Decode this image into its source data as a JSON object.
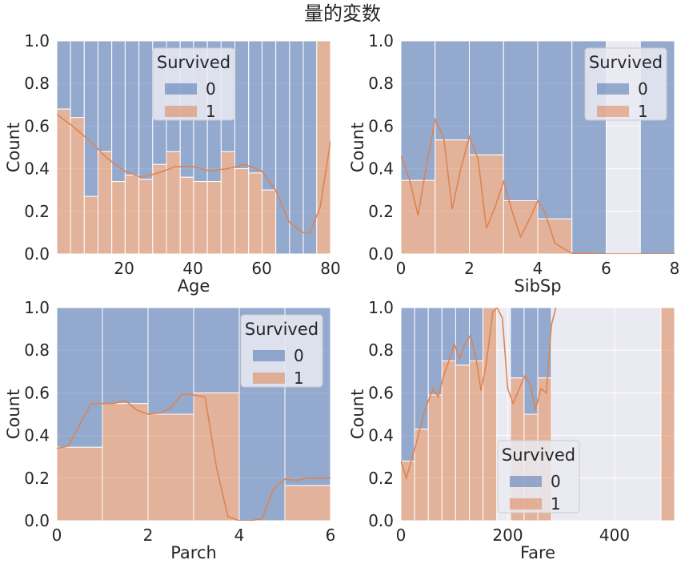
{
  "figure": {
    "title": "量的変数",
    "colors": {
      "survived_0": "#4c72b0",
      "survived_1": "#dd8452",
      "kde": "#dd8452",
      "axes_bg": "#eaeaf2",
      "grid": "#ffffff"
    }
  },
  "chart_data": [
    {
      "type": "bar",
      "stacked": "fill",
      "xlabel": "Age",
      "ylabel": "Count",
      "xlim": [
        0.42,
        80
      ],
      "ylim": [
        0,
        1
      ],
      "xticks": [
        "20",
        "40",
        "60",
        "80"
      ],
      "yticks": [
        "0.0",
        "0.2",
        "0.4",
        "0.6",
        "0.8",
        "1.0"
      ],
      "legend": {
        "title": "Survived",
        "labels": [
          "0",
          "1"
        ],
        "position": "upper-center"
      },
      "bin_edges": [
        0.42,
        4.4,
        8.4,
        12.4,
        16.4,
        20.3,
        24.3,
        28.3,
        32.3,
        36.3,
        40.2,
        44.2,
        48.2,
        52.2,
        56.2,
        60.1,
        64.1,
        68.1,
        72.1,
        76.0,
        80.0
      ],
      "series": [
        {
          "name": "0",
          "values": [
            0.32,
            0.36,
            0.73,
            0.52,
            0.66,
            0.63,
            0.65,
            0.58,
            0.52,
            0.64,
            0.66,
            0.66,
            0.52,
            0.6,
            0.62,
            0.7,
            1.0,
            1.0,
            1.0,
            0.0
          ]
        },
        {
          "name": "1",
          "values": [
            0.68,
            0.64,
            0.27,
            0.48,
            0.34,
            0.37,
            0.35,
            0.42,
            0.48,
            0.36,
            0.34,
            0.34,
            0.48,
            0.4,
            0.38,
            0.3,
            0.0,
            0.0,
            0.0,
            1.0
          ]
        }
      ],
      "kde": {
        "x": [
          0.42,
          5,
          10,
          15,
          20,
          25,
          30,
          35,
          40,
          45,
          50,
          55,
          60,
          64,
          68,
          72,
          74,
          77,
          80
        ],
        "y": [
          0.655,
          0.6,
          0.53,
          0.45,
          0.39,
          0.36,
          0.38,
          0.41,
          0.41,
          0.39,
          0.4,
          0.42,
          0.39,
          0.3,
          0.15,
          0.1,
          0.1,
          0.22,
          0.53
        ]
      }
    },
    {
      "type": "bar",
      "stacked": "fill",
      "xlabel": "SibSp",
      "ylabel": "Count",
      "xlim": [
        0,
        8
      ],
      "ylim": [
        0,
        1
      ],
      "xticks": [
        "0",
        "2",
        "4",
        "6",
        "8"
      ],
      "yticks": [
        "0.0",
        "0.2",
        "0.4",
        "0.6",
        "0.8",
        "1.0"
      ],
      "legend": {
        "title": "Survived",
        "labels": [
          "0",
          "1"
        ],
        "position": "upper-right"
      },
      "bin_edges": [
        0,
        1,
        2,
        3,
        4,
        5,
        6,
        7,
        8
      ],
      "series": [
        {
          "name": "0",
          "values": [
            0.655,
            0.465,
            0.535,
            0.75,
            0.835,
            1.0,
            null,
            1.0
          ]
        },
        {
          "name": "1",
          "values": [
            0.345,
            0.535,
            0.465,
            0.25,
            0.165,
            0.0,
            null,
            0.0
          ]
        }
      ],
      "kde": {
        "x": [
          0,
          0.25,
          0.5,
          0.75,
          1.0,
          1.25,
          1.5,
          1.75,
          2.0,
          2.25,
          2.5,
          2.75,
          3.0,
          3.25,
          3.5,
          3.75,
          4.0,
          4.2,
          4.5,
          5,
          6,
          7,
          8
        ],
        "y": [
          0.46,
          0.35,
          0.18,
          0.42,
          0.63,
          0.55,
          0.21,
          0.4,
          0.55,
          0.45,
          0.12,
          0.22,
          0.34,
          0.2,
          0.08,
          0.16,
          0.25,
          0.2,
          0.05,
          0.003,
          0.0,
          0.0,
          0.0
        ]
      }
    },
    {
      "type": "bar",
      "stacked": "fill",
      "xlabel": "Parch",
      "ylabel": "Count",
      "xlim": [
        0,
        6
      ],
      "ylim": [
        0,
        1
      ],
      "xticks": [
        "0",
        "2",
        "4",
        "6"
      ],
      "yticks": [
        "0.0",
        "0.2",
        "0.4",
        "0.6",
        "0.8",
        "1.0"
      ],
      "legend": {
        "title": "Survived",
        "labels": [
          "0",
          "1"
        ],
        "position": "upper-right"
      },
      "bin_edges": [
        0,
        1,
        2,
        3,
        4,
        5,
        6
      ],
      "series": [
        {
          "name": "0",
          "values": [
            0.655,
            0.45,
            0.5,
            0.4,
            1.0,
            0.835
          ]
        },
        {
          "name": "1",
          "values": [
            0.345,
            0.55,
            0.5,
            0.6,
            0.0,
            0.165
          ]
        }
      ],
      "kde": {
        "x": [
          0,
          0.25,
          0.5,
          0.75,
          1.0,
          1.25,
          1.5,
          1.75,
          2.0,
          2.25,
          2.5,
          2.75,
          3.0,
          3.25,
          3.5,
          3.75,
          4.0,
          4.25,
          4.5,
          4.75,
          5.0,
          5.25,
          5.5,
          6.0
        ],
        "y": [
          0.34,
          0.35,
          0.45,
          0.55,
          0.55,
          0.55,
          0.565,
          0.52,
          0.5,
          0.505,
          0.53,
          0.595,
          0.59,
          0.58,
          0.25,
          0.02,
          0.0,
          0.0,
          0.01,
          0.15,
          0.195,
          0.19,
          0.2,
          0.2
        ]
      }
    },
    {
      "type": "bar",
      "stacked": "fill",
      "xlabel": "Fare",
      "ylabel": "Count",
      "xlim": [
        0,
        512.33
      ],
      "ylim": [
        0,
        1
      ],
      "xticks": [
        "0",
        "200",
        "400"
      ],
      "yticks": [
        "0.0",
        "0.2",
        "0.4",
        "0.6",
        "0.8",
        "1.0"
      ],
      "legend": {
        "title": "Survived",
        "labels": [
          "0",
          "1"
        ],
        "position": "lower-center"
      },
      "bin_edges": [
        0,
        25.6,
        51.2,
        76.9,
        102.5,
        128.1,
        153.7,
        179.3,
        205.0,
        230.6,
        256.2,
        281.8,
        307.4,
        333.0,
        358.7,
        384.3,
        409.9,
        435.5,
        461.1,
        486.8,
        512.33
      ],
      "series": [
        {
          "name": "0",
          "values": [
            0.72,
            0.57,
            0.41,
            0.25,
            0.27,
            0.25,
            0.0,
            null,
            0.33,
            0.5,
            0.33,
            null,
            null,
            null,
            null,
            null,
            null,
            null,
            null,
            0.0
          ]
        },
        {
          "name": "1",
          "values": [
            0.28,
            0.43,
            0.59,
            0.75,
            0.73,
            0.75,
            1.0,
            null,
            0.67,
            0.5,
            0.67,
            null,
            null,
            null,
            null,
            null,
            null,
            null,
            null,
            1.0
          ]
        }
      ],
      "kde": {
        "x": [
          0,
          10,
          25,
          45,
          60,
          70,
          80,
          90,
          100,
          110,
          120,
          130,
          140,
          150,
          160,
          172,
          180,
          190,
          200,
          210,
          225,
          232,
          242,
          252,
          262,
          272,
          282,
          290
        ],
        "y": [
          0.28,
          0.2,
          0.33,
          0.52,
          0.62,
          0.58,
          0.68,
          0.75,
          0.83,
          0.76,
          0.83,
          0.87,
          0.77,
          0.61,
          0.74,
          0.98,
          1.0,
          0.95,
          0.62,
          0.55,
          0.64,
          0.68,
          0.64,
          0.52,
          0.62,
          0.6,
          0.92,
          1.0
        ]
      }
    }
  ]
}
